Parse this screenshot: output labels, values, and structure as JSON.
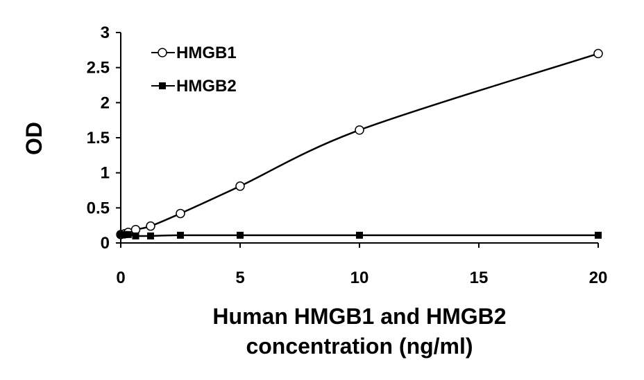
{
  "chart_data": {
    "type": "scatter",
    "xlabel_lines": [
      "Human HMGB1 and HMGB2",
      "concentration (ng/ml)"
    ],
    "ylabel": "OD",
    "xlim": [
      0,
      20
    ],
    "ylim": [
      0,
      3
    ],
    "x_ticks": [
      "0",
      "5",
      "10",
      "15",
      "20"
    ],
    "y_ticks": [
      "0",
      "0.5",
      "1",
      "1.5",
      "2",
      "2.5",
      "3"
    ],
    "grid": false,
    "legend_position": "top-left",
    "series": [
      {
        "name": "HMGB1",
        "marker": "open-circle",
        "color": "#000000",
        "x": [
          0,
          0.156,
          0.3125,
          0.625,
          1.25,
          2.5,
          5,
          10,
          20
        ],
        "y": [
          0.12,
          0.13,
          0.15,
          0.19,
          0.24,
          0.42,
          0.81,
          1.61,
          2.7
        ]
      },
      {
        "name": "HMGB2",
        "marker": "filled-square",
        "color": "#000000",
        "x": [
          0,
          0.156,
          0.3125,
          0.625,
          1.25,
          2.5,
          5,
          10,
          20
        ],
        "y": [
          0.12,
          0.12,
          0.12,
          0.1,
          0.1,
          0.11,
          0.11,
          0.11,
          0.11
        ]
      }
    ]
  }
}
